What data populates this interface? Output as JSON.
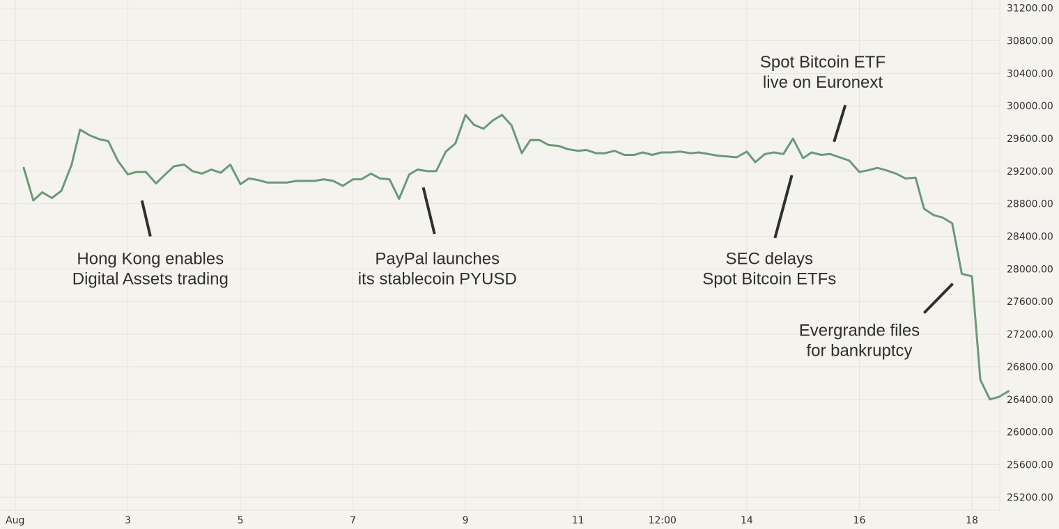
{
  "chart_data": {
    "type": "line",
    "title": "",
    "xlabel": "",
    "ylabel": "",
    "y_axis_position": "right",
    "grid": true,
    "ylim": [
      25040,
      31300
    ],
    "y_ticks": [
      "31200.00",
      "30800.00",
      "30400.00",
      "30000.00",
      "29600.00",
      "29200.00",
      "28800.00",
      "28400.00",
      "28000.00",
      "27600.00",
      "27200.00",
      "26800.00",
      "26400.00",
      "26000.00",
      "25600.00",
      "25200.00"
    ],
    "y_tick_values": [
      31200,
      30800,
      30400,
      30000,
      29600,
      29200,
      28800,
      28400,
      28000,
      27600,
      27200,
      26800,
      26400,
      26000,
      25600,
      25200
    ],
    "x_range": [
      0,
      17.93
    ],
    "x_ticks": [
      {
        "label": "Aug",
        "x": 0
      },
      {
        "label": "3",
        "x": 2
      },
      {
        "label": "5",
        "x": 4
      },
      {
        "label": "7",
        "x": 6
      },
      {
        "label": "9",
        "x": 8
      },
      {
        "label": "11",
        "x": 10
      },
      {
        "label": "12:00",
        "x": 11.5
      },
      {
        "label": "14",
        "x": 13
      },
      {
        "label": "16",
        "x": 15
      },
      {
        "label": "18",
        "x": 17
      }
    ],
    "series": [
      {
        "color": "#6a9a78",
        "points": [
          [
            0.15,
            29240
          ],
          [
            0.32,
            28840
          ],
          [
            0.48,
            28940
          ],
          [
            0.65,
            28870
          ],
          [
            0.82,
            28960
          ],
          [
            1.0,
            29280
          ],
          [
            1.15,
            29710
          ],
          [
            1.32,
            29640
          ],
          [
            1.5,
            29590
          ],
          [
            1.65,
            29570
          ],
          [
            1.82,
            29330
          ],
          [
            2.0,
            29160
          ],
          [
            2.15,
            29190
          ],
          [
            2.32,
            29190
          ],
          [
            2.5,
            29050
          ],
          [
            2.65,
            29150
          ],
          [
            2.82,
            29260
          ],
          [
            3.0,
            29280
          ],
          [
            3.15,
            29200
          ],
          [
            3.32,
            29170
          ],
          [
            3.48,
            29220
          ],
          [
            3.65,
            29180
          ],
          [
            3.82,
            29280
          ],
          [
            4.0,
            29040
          ],
          [
            4.15,
            29110
          ],
          [
            4.32,
            29090
          ],
          [
            4.48,
            29060
          ],
          [
            4.65,
            29060
          ],
          [
            4.82,
            29060
          ],
          [
            5.0,
            29080
          ],
          [
            5.15,
            29080
          ],
          [
            5.32,
            29080
          ],
          [
            5.48,
            29100
          ],
          [
            5.65,
            29080
          ],
          [
            5.82,
            29020
          ],
          [
            6.0,
            29100
          ],
          [
            6.15,
            29100
          ],
          [
            6.32,
            29170
          ],
          [
            6.48,
            29110
          ],
          [
            6.65,
            29100
          ],
          [
            6.82,
            28860
          ],
          [
            7.0,
            29160
          ],
          [
            7.15,
            29220
          ],
          [
            7.32,
            29200
          ],
          [
            7.48,
            29200
          ],
          [
            7.65,
            29440
          ],
          [
            7.82,
            29540
          ],
          [
            8.0,
            29890
          ],
          [
            8.15,
            29770
          ],
          [
            8.32,
            29720
          ],
          [
            8.48,
            29820
          ],
          [
            8.65,
            29890
          ],
          [
            8.82,
            29760
          ],
          [
            9.0,
            29420
          ],
          [
            9.15,
            29580
          ],
          [
            9.32,
            29580
          ],
          [
            9.48,
            29520
          ],
          [
            9.65,
            29510
          ],
          [
            9.82,
            29470
          ],
          [
            10.0,
            29450
          ],
          [
            10.15,
            29460
          ],
          [
            10.32,
            29420
          ],
          [
            10.48,
            29420
          ],
          [
            10.65,
            29450
          ],
          [
            10.82,
            29400
          ],
          [
            11.0,
            29400
          ],
          [
            11.15,
            29430
          ],
          [
            11.32,
            29400
          ],
          [
            11.48,
            29430
          ],
          [
            11.65,
            29430
          ],
          [
            11.82,
            29440
          ],
          [
            12.0,
            29420
          ],
          [
            12.15,
            29430
          ],
          [
            12.32,
            29410
          ],
          [
            12.48,
            29390
          ],
          [
            12.65,
            29380
          ],
          [
            12.82,
            29370
          ],
          [
            13.0,
            29440
          ],
          [
            13.15,
            29310
          ],
          [
            13.32,
            29410
          ],
          [
            13.48,
            29430
          ],
          [
            13.65,
            29410
          ],
          [
            13.82,
            29600
          ],
          [
            14.0,
            29360
          ],
          [
            14.15,
            29430
          ],
          [
            14.32,
            29400
          ],
          [
            14.48,
            29410
          ],
          [
            14.65,
            29370
          ],
          [
            14.82,
            29330
          ],
          [
            15.0,
            29190
          ],
          [
            15.15,
            29210
          ],
          [
            15.32,
            29240
          ],
          [
            15.48,
            29210
          ],
          [
            15.65,
            29170
          ],
          [
            15.82,
            29110
          ],
          [
            16.0,
            29120
          ],
          [
            16.15,
            28740
          ],
          [
            16.32,
            28660
          ],
          [
            16.48,
            28630
          ],
          [
            16.65,
            28560
          ],
          [
            16.82,
            27940
          ],
          [
            17.0,
            27910
          ],
          [
            17.15,
            26640
          ],
          [
            17.32,
            26400
          ],
          [
            17.48,
            26430
          ],
          [
            17.65,
            26500
          ]
        ]
      }
    ],
    "annotations": [
      {
        "lines": [
          "Hong Kong enables",
          "Digital Assets trading"
        ],
        "x": 2.4,
        "y": 28060,
        "leader": [
          [
            2.25,
            28840
          ],
          [
            2.4,
            28400
          ]
        ]
      },
      {
        "lines": [
          "PayPal launches",
          "its stablecoin PYUSD"
        ],
        "x": 7.5,
        "y": 28060,
        "leader": [
          [
            7.25,
            29000
          ],
          [
            7.45,
            28430
          ]
        ]
      },
      {
        "lines": [
          "SEC delays",
          "Spot Bitcoin ETFs"
        ],
        "x": 13.4,
        "y": 28060,
        "leader": [
          [
            13.8,
            29150
          ],
          [
            13.5,
            28380
          ]
        ]
      },
      {
        "lines": [
          "Spot Bitcoin ETF",
          "live on Euronext"
        ],
        "x": 14.35,
        "y": 30470,
        "leader": [
          [
            14.75,
            30010
          ],
          [
            14.55,
            29560
          ]
        ]
      },
      {
        "lines": [
          "Evergrande files",
          "for bankruptcy"
        ],
        "x": 15.0,
        "y": 27180,
        "leader": [
          [
            16.66,
            27820
          ],
          [
            16.15,
            27460
          ]
        ]
      }
    ]
  }
}
